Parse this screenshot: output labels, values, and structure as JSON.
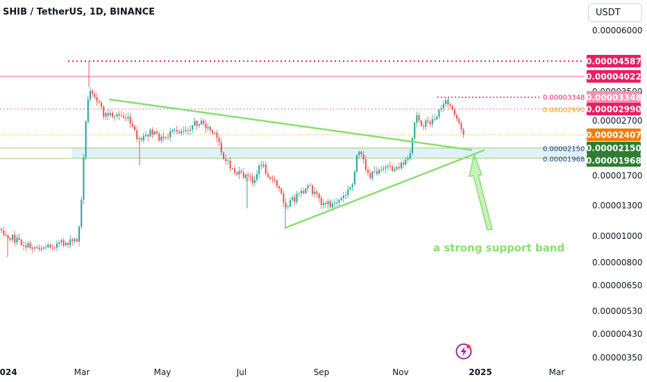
{
  "header": {
    "title": "SHIB / TetherUS, 1D, BINANCE"
  },
  "toolbar": {
    "currency_label": "USDT"
  },
  "icons": {
    "brand": "lightning-bolt-icon"
  },
  "chart_data": {
    "type": "candlestick",
    "title": "SHIB / TetherUS, 1D, BINANCE",
    "y_scale": "log",
    "ylim": [
      3.3e-06,
      6.6e-06
    ],
    "y_ticks": [
      "0.00006000",
      "0.00003500",
      "0.00002700",
      "0.00001700",
      "0.00001300",
      "0.00001000",
      "0.00000800",
      "0.00000650",
      "0.00000530",
      "0.00000430",
      "0.00000350"
    ],
    "x_ticks": [
      "2024",
      "Mar",
      "May",
      "Jul",
      "Sep",
      "Nov",
      "2025",
      "Mar"
    ],
    "bold_x_ticks": [
      "2024",
      "2025"
    ],
    "price_labels": [
      {
        "value": "0.00004587",
        "bg": "#e91e63",
        "fg": "#ffffff"
      },
      {
        "value": "0.00004022",
        "bg": "#e91e63",
        "fg": "#ffffff"
      },
      {
        "value": "0.00003348",
        "bg": "#f48fb1",
        "fg": "#ffffff"
      },
      {
        "value": "0.00002990",
        "bg": "#e91e63",
        "fg": "#ffffff"
      },
      {
        "value": "0.00002407",
        "bg": "#f57c00",
        "fg": "#ffffff"
      },
      {
        "value": "0.00002150",
        "bg": "#2e7d32",
        "fg": "#ffffff"
      },
      {
        "value": "0.00001968",
        "bg": "#2e7d32",
        "fg": "#ffffff"
      }
    ],
    "line_labels": [
      {
        "value": "0.00003348",
        "color": "#e91e63"
      },
      {
        "value": "0.00002990",
        "color": "#ff9800"
      },
      {
        "value": "0.00002150",
        "color": "#1e3a8a"
      },
      {
        "value": "0.00001968",
        "color": "#1e3a8a"
      }
    ],
    "annotation": "a strong support band",
    "colors": {
      "up": "#26a69a",
      "down": "#ef5350",
      "trendline": "#86e06c",
      "band": "#dff1fb",
      "annotation": "#86e06c"
    }
  }
}
